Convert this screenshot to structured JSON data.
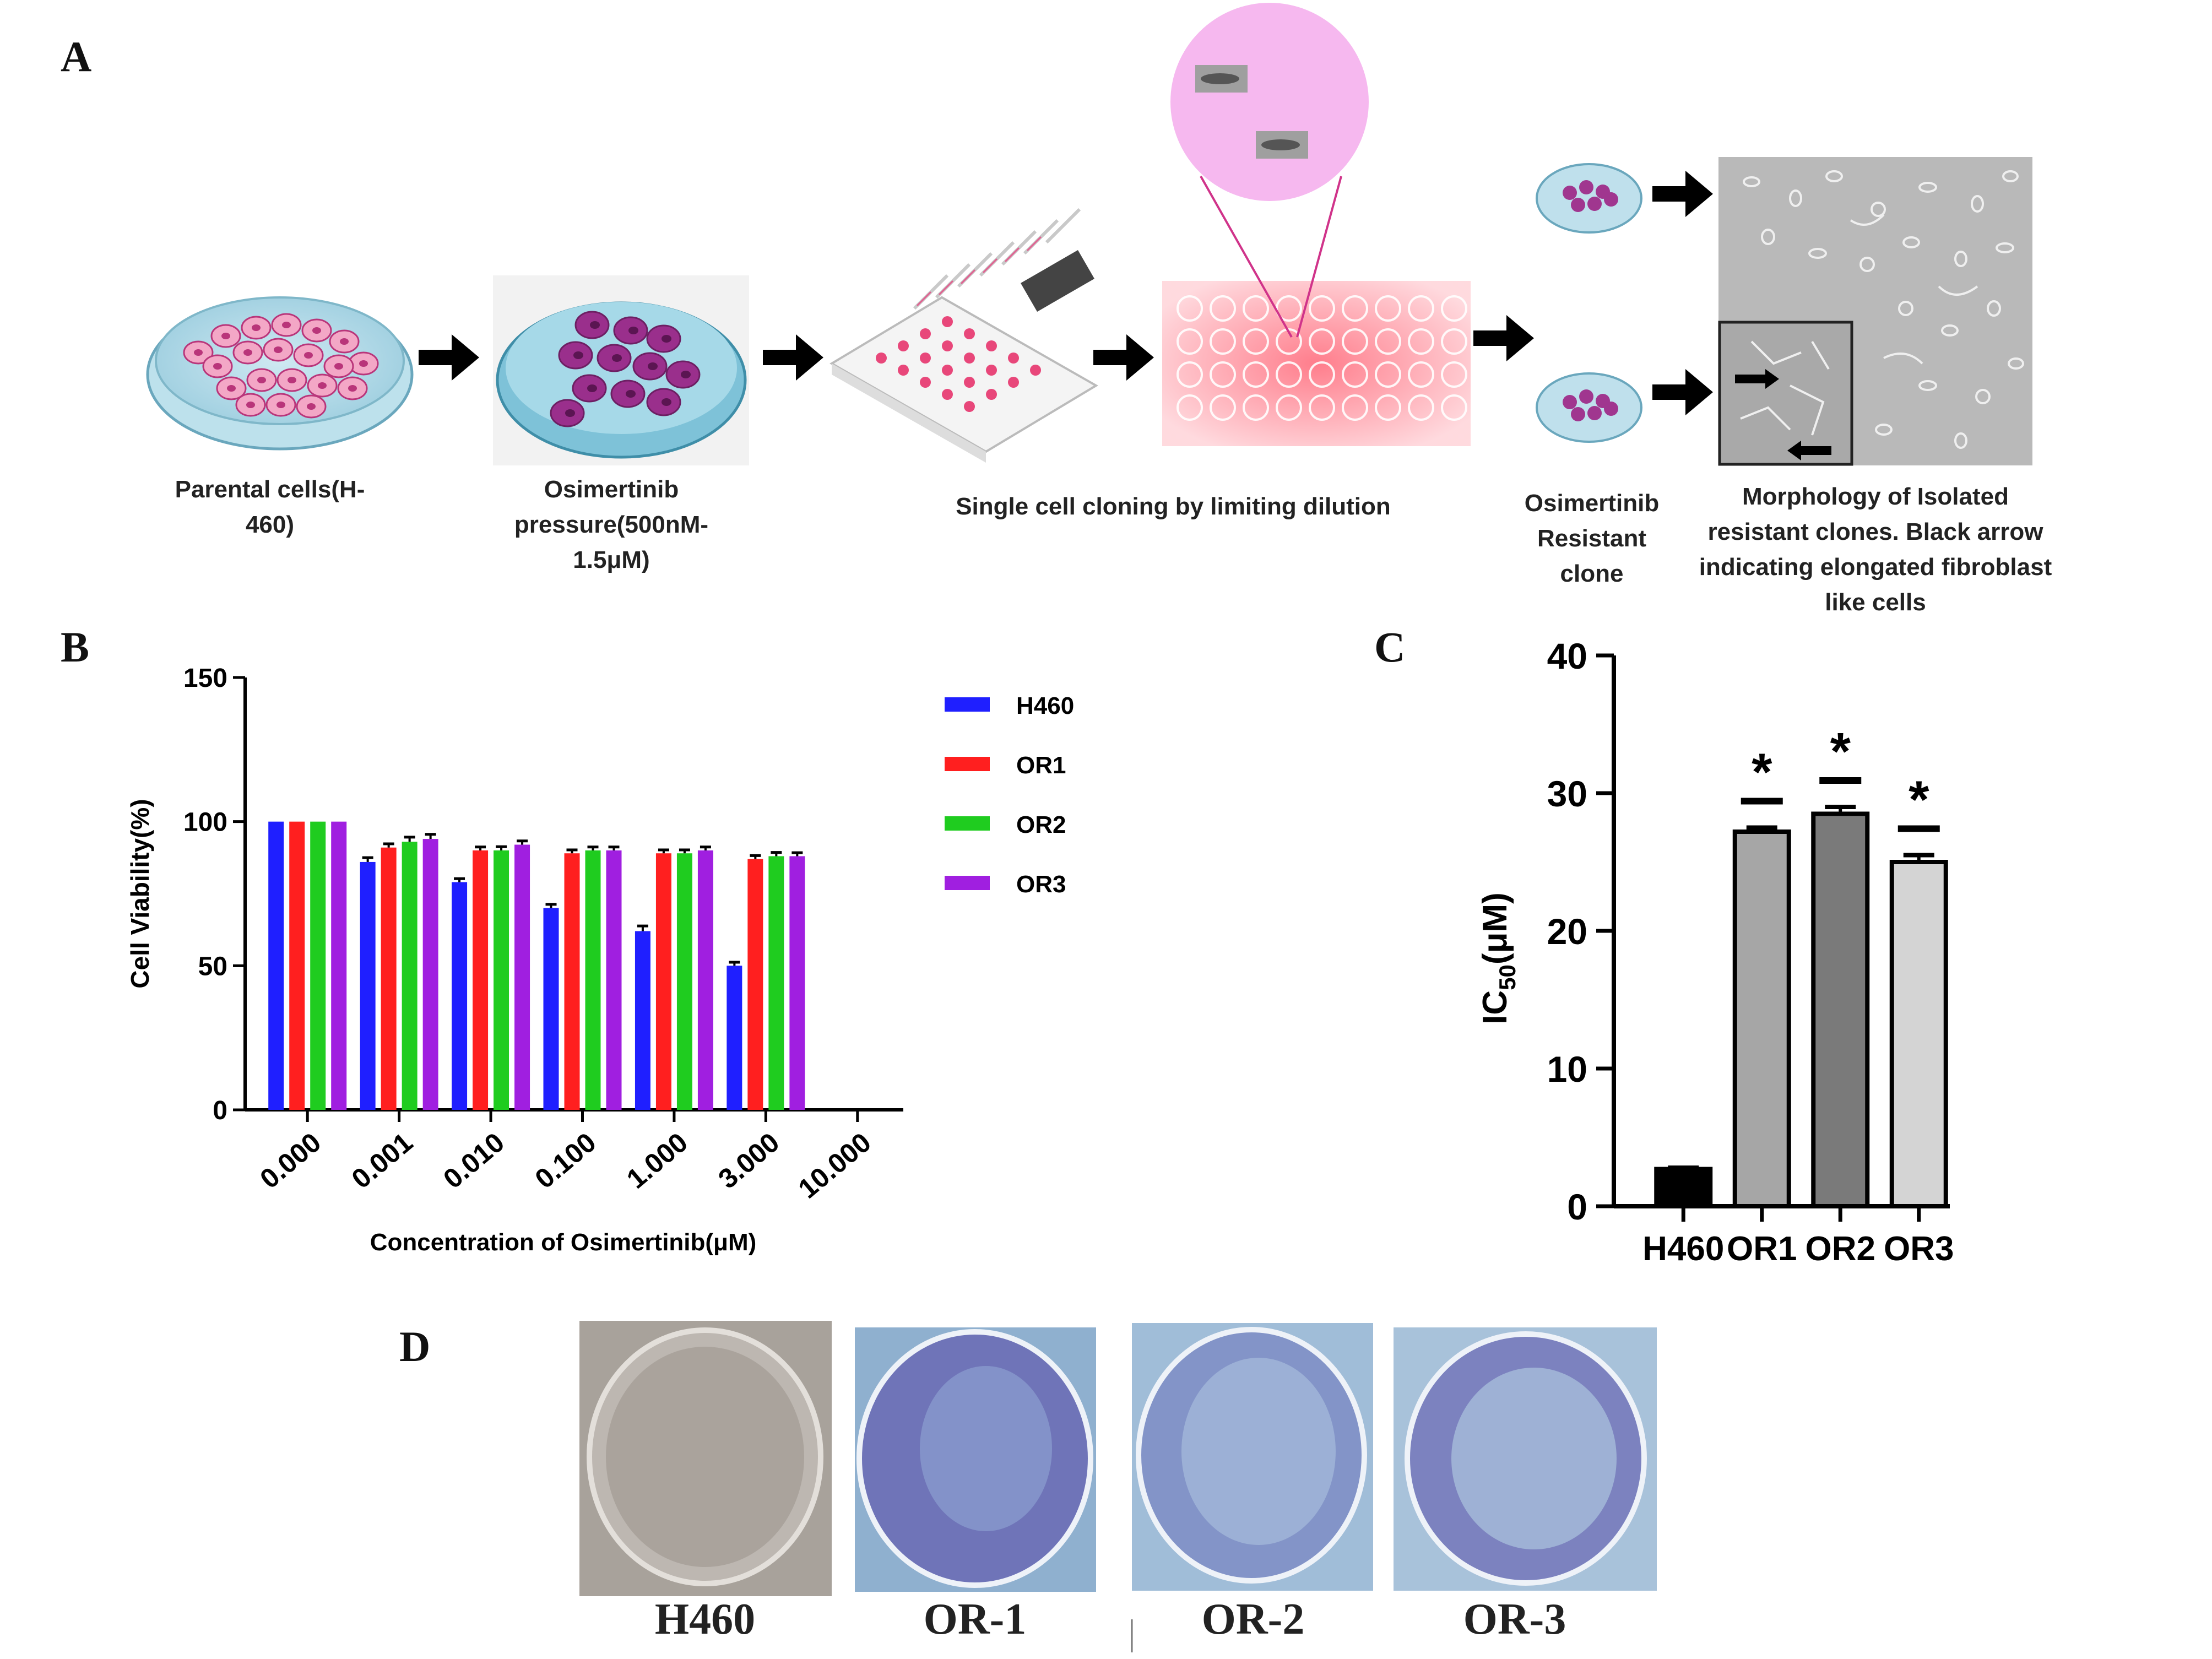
{
  "panels": {
    "a": "A",
    "b": "B",
    "c": "C",
    "d": "D"
  },
  "panel_a": {
    "steps": [
      {
        "caption": "Parental cells(H-460)"
      },
      {
        "caption": "Osimertinib pressure(500nM-1.5μM)"
      },
      {
        "caption": "Single cell cloning by limiting dilution"
      },
      {
        "caption": "Osimertinib Resistant clone"
      },
      {
        "caption": "Morphology of Isolated resistant clones. Black arrow indicating elongated fibroblast like cells"
      }
    ]
  },
  "chart_data": [
    {
      "id": "B",
      "type": "bar",
      "ylabel": "Cell Viability(%)",
      "xlabel": "Concentration of Osimertinib(μM)",
      "ylim": [
        0,
        150
      ],
      "yticks": [
        0,
        50,
        100,
        150
      ],
      "categories": [
        "0.000",
        "0.001",
        "0.010",
        "0.100",
        "1.000",
        "3.000",
        "10.000"
      ],
      "legend_position": "top-right",
      "series": [
        {
          "name": "H460",
          "color": "#1f1fff",
          "values": [
            100,
            86,
            79,
            70,
            62,
            50,
            null
          ],
          "err": [
            0,
            1.5,
            1.2,
            1.3,
            1.8,
            1.2,
            0
          ]
        },
        {
          "name": "OR1",
          "color": "#ff1f1f",
          "values": [
            100,
            91,
            90,
            89,
            89,
            87,
            null
          ],
          "err": [
            0,
            1.3,
            1.2,
            1.2,
            1.2,
            1.2,
            0
          ]
        },
        {
          "name": "OR2",
          "color": "#1fcc1f",
          "values": [
            100,
            93,
            90,
            90,
            89,
            88,
            null
          ],
          "err": [
            0,
            1.6,
            1.3,
            1.2,
            1.2,
            1.3,
            0
          ]
        },
        {
          "name": "OR3",
          "color": "#a01fe0",
          "values": [
            100,
            94,
            92,
            90,
            90,
            88,
            null
          ],
          "err": [
            0,
            1.6,
            1.3,
            1.2,
            1.2,
            1.2,
            0
          ]
        }
      ]
    },
    {
      "id": "C",
      "type": "bar",
      "ylabel": "IC50(μM)",
      "ylabel_main": "IC",
      "ylabel_sub": "50",
      "ylabel_unit": "(μM)",
      "ylim": [
        0,
        40
      ],
      "yticks": [
        0,
        10,
        20,
        30,
        40
      ],
      "categories": [
        "H460",
        "OR1",
        "OR2",
        "OR3"
      ],
      "values": [
        2.7,
        27.2,
        28.5,
        25.0
      ],
      "err": [
        0.1,
        0.3,
        0.5,
        0.5
      ],
      "colors": [
        "#000000",
        "#a6a6a6",
        "#7a7a7a",
        "#d4d4d4"
      ],
      "significance": [
        "",
        "*",
        "*",
        "*"
      ]
    }
  ],
  "panel_d": {
    "labels": [
      "H460",
      "OR-1",
      "OR-2",
      "OR-3"
    ]
  }
}
